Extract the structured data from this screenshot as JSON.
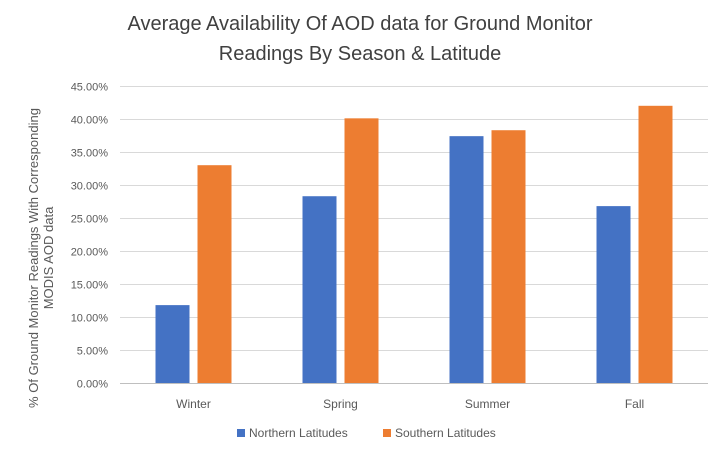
{
  "chart_data": {
    "type": "bar",
    "title_lines": [
      "Average Availability  Of AOD data for Ground Monitor",
      "Readings By Season & Latitude"
    ],
    "ylabel_lines": [
      "% Of Ground Monitor Readings With Corresponding",
      "MODIS AOD data"
    ],
    "xlabel": "",
    "categories": [
      "Winter",
      "Spring",
      "Summer",
      "Fall"
    ],
    "series": [
      {
        "name": "Northern Latitudes",
        "color": "#4472C4",
        "values": [
          11.8,
          28.3,
          37.4,
          26.8
        ]
      },
      {
        "name": "Southern Latitudes",
        "color": "#ED7D31",
        "values": [
          33.0,
          40.1,
          38.3,
          42.0
        ]
      }
    ],
    "ylim": [
      0,
      45
    ],
    "yticks": [
      0,
      5,
      10,
      15,
      20,
      25,
      30,
      35,
      40,
      45
    ],
    "ytick_labels": [
      "0.00%",
      "5.00%",
      "10.00%",
      "15.00%",
      "20.00%",
      "25.00%",
      "30.00%",
      "35.00%",
      "40.00%",
      "45.00%"
    ],
    "grid": true,
    "legend_position": "bottom"
  }
}
